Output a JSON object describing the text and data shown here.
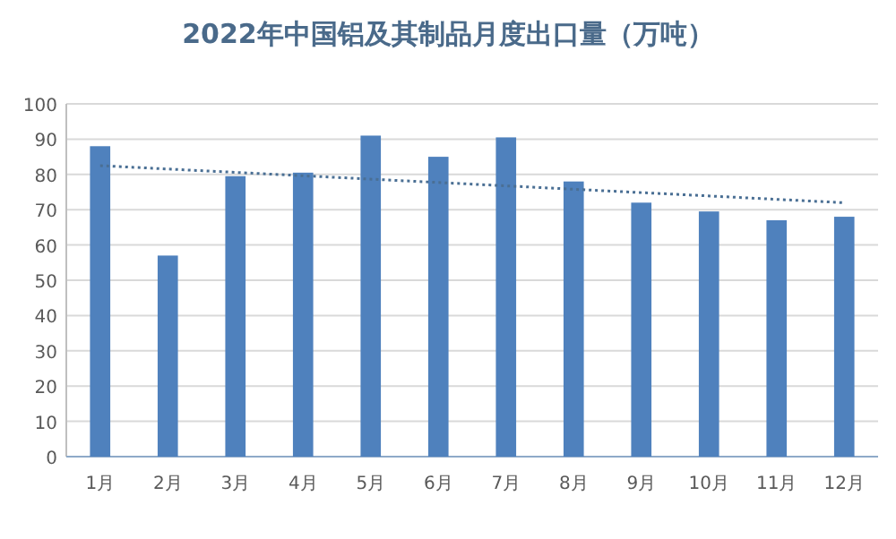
{
  "chart_data": {
    "type": "bar",
    "title": "2022年中国铝及其制品月度出口量（万吨）",
    "categories": [
      "1月",
      "2月",
      "3月",
      "4月",
      "5月",
      "6月",
      "7月",
      "8月",
      "9月",
      "10月",
      "11月",
      "12月"
    ],
    "series": [
      {
        "color": "#4f81bd",
        "values": [
          88,
          57,
          79.5,
          80.5,
          91,
          85,
          90.5,
          78,
          72,
          69.5,
          67,
          68
        ]
      },
      {
        "type": "line",
        "color": "#4a6f94",
        "line_style": "dotted",
        "x": [
          "1月",
          "12月"
        ],
        "values": [
          82.5,
          72
        ]
      }
    ],
    "ylim": [
      0,
      100
    ],
    "yticks": [
      0,
      10,
      20,
      30,
      40,
      50,
      60,
      70,
      80,
      90,
      100
    ],
    "grid": "y"
  }
}
